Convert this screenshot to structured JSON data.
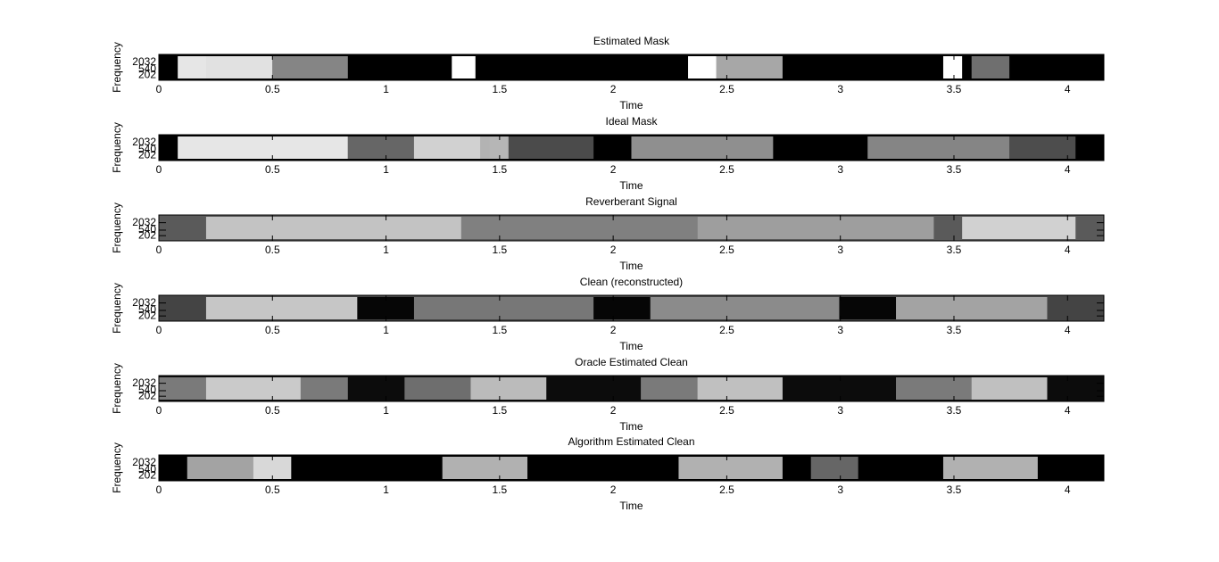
{
  "chart_data": [
    {
      "type": "heatmap",
      "title": "Estimated Mask",
      "xlabel": "Time",
      "ylabel": "Frequency",
      "xlim": [
        0,
        4.16
      ],
      "xticks": [
        0,
        0.5,
        1,
        1.5,
        2,
        2.5,
        3,
        3.5,
        4
      ],
      "ylim": [
        80,
        8000
      ],
      "yticks": [
        202,
        540,
        2032
      ],
      "yscale": "log",
      "colormap": "gray"
    },
    {
      "type": "heatmap",
      "title": "Ideal Mask",
      "xlabel": "Time",
      "ylabel": "Frequency",
      "xlim": [
        0,
        4.16
      ],
      "xticks": [
        0,
        0.5,
        1,
        1.5,
        2,
        2.5,
        3,
        3.5,
        4
      ],
      "ylim": [
        80,
        8000
      ],
      "yticks": [
        202,
        540,
        2032
      ],
      "yscale": "log",
      "colormap": "gray"
    },
    {
      "type": "heatmap",
      "title": "Reverberant Signal",
      "xlabel": "Time",
      "ylabel": "Frequency",
      "xlim": [
        0,
        4.16
      ],
      "xticks": [
        0,
        0.5,
        1,
        1.5,
        2,
        2.5,
        3,
        3.5,
        4
      ],
      "ylim": [
        80,
        8000
      ],
      "yticks": [
        202,
        540,
        2032
      ],
      "yscale": "log",
      "colormap": "gray"
    },
    {
      "type": "heatmap",
      "title": "Clean (reconstructed)",
      "xlabel": "Time",
      "ylabel": "Frequency",
      "xlim": [
        0,
        4.16
      ],
      "xticks": [
        0,
        0.5,
        1,
        1.5,
        2,
        2.5,
        3,
        3.5,
        4
      ],
      "ylim": [
        80,
        8000
      ],
      "yticks": [
        202,
        540,
        2032
      ],
      "yscale": "log",
      "colormap": "gray"
    },
    {
      "type": "heatmap",
      "title": "Oracle Estimated Clean",
      "xlabel": "Time",
      "ylabel": "Frequency",
      "xlim": [
        0,
        4.16
      ],
      "xticks": [
        0,
        0.5,
        1,
        1.5,
        2,
        2.5,
        3,
        3.5,
        4
      ],
      "ylim": [
        80,
        8000
      ],
      "yticks": [
        202,
        540,
        2032
      ],
      "yscale": "log",
      "colormap": "gray"
    },
    {
      "type": "heatmap",
      "title": "Algorithm Estimated Clean",
      "xlabel": "Time",
      "ylabel": "Frequency",
      "xlim": [
        0,
        4.16
      ],
      "xticks": [
        0,
        0.5,
        1,
        1.5,
        2,
        2.5,
        3,
        3.5,
        4
      ],
      "ylim": [
        80,
        8000
      ],
      "yticks": [
        202,
        540,
        2032
      ],
      "yscale": "log",
      "colormap": "gray"
    }
  ]
}
